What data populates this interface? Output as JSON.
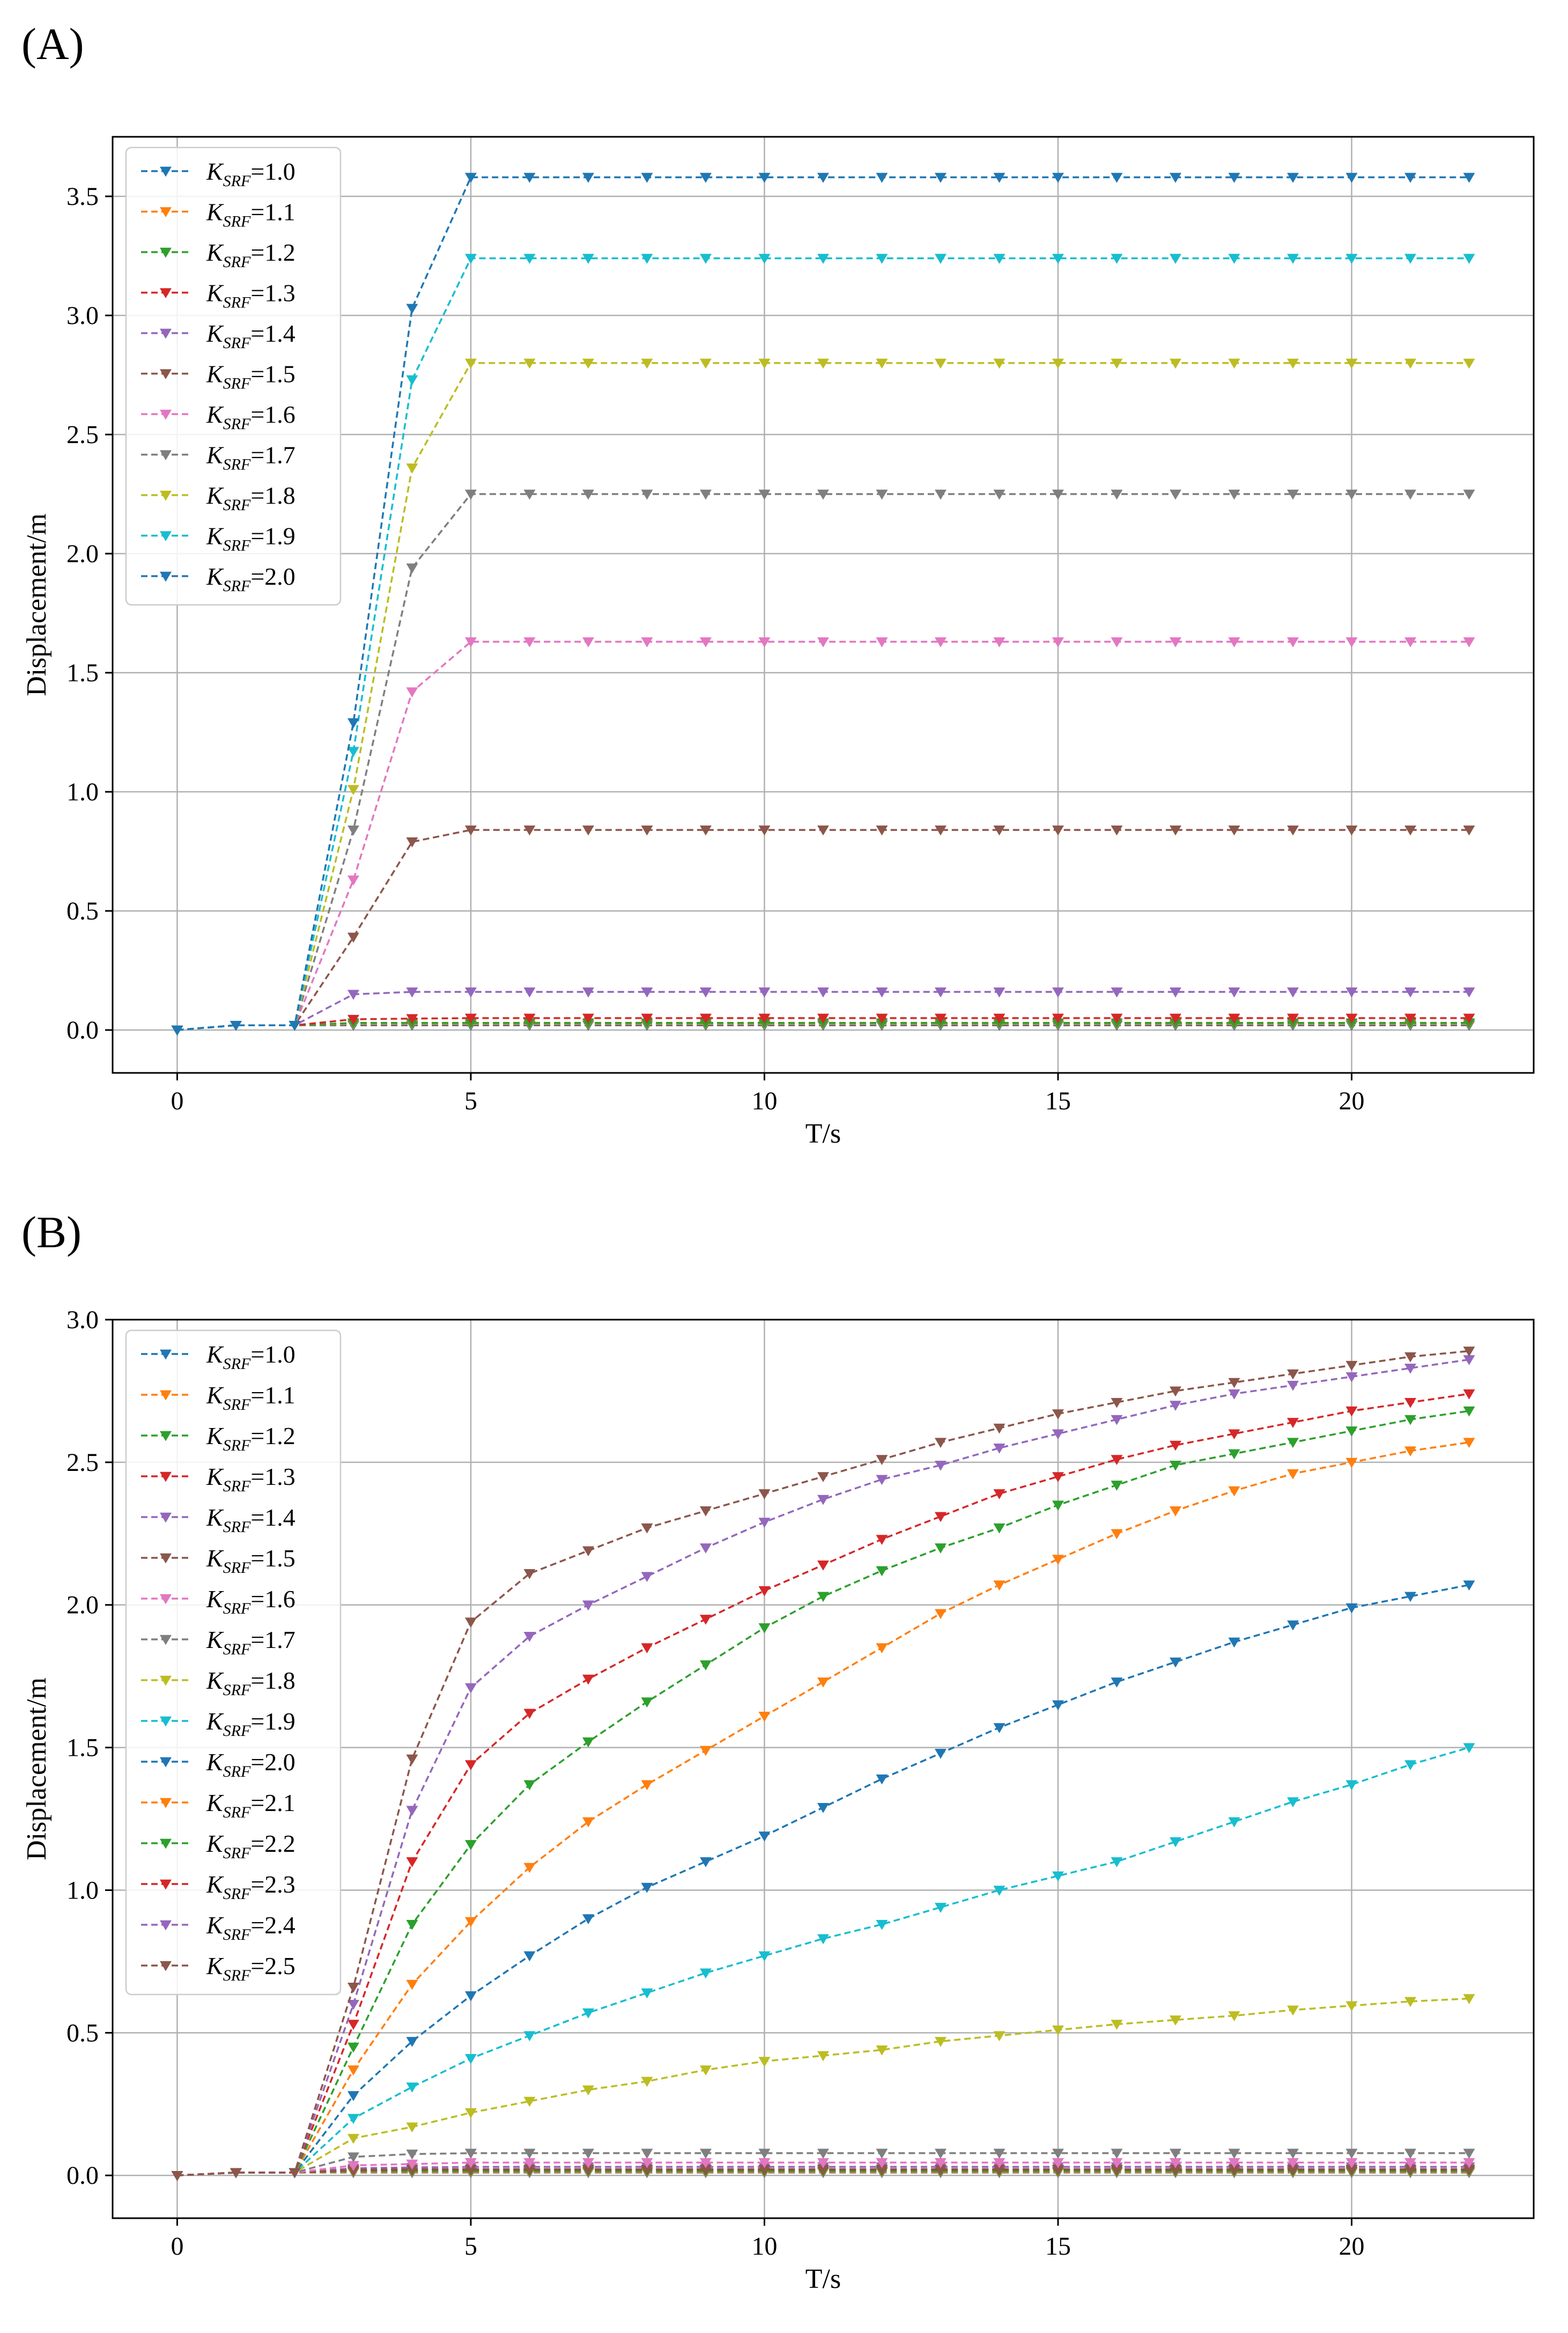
{
  "figure": {
    "markers": {
      "glyph": "triangle-down"
    },
    "colors": {
      "1.0": "#1f77b4",
      "1.1": "#ff7f0e",
      "1.2": "#2ca02c",
      "1.3": "#d62728",
      "1.4": "#9467bd",
      "1.5": "#8c564b",
      "1.6": "#e377c2",
      "1.7": "#7f7f7f",
      "1.8": "#bcbd22",
      "1.9": "#17becf",
      "2.0": "#1f77b4",
      "2.1": "#ff7f0e",
      "2.2": "#2ca02c",
      "2.3": "#d62728",
      "2.4": "#9467bd",
      "2.5": "#8c564b"
    }
  },
  "chart_data": [
    {
      "panel_label": "(A)",
      "type": "line",
      "line_style": "dashed",
      "xlabel": "T/s",
      "ylabel": "Displacement/m",
      "xlim": [
        -1.1,
        23.1
      ],
      "ylim": [
        -0.18,
        3.75
      ],
      "xticks": [
        "0",
        "5",
        "10",
        "15",
        "20"
      ],
      "xtick_values": [
        0,
        5,
        10,
        15,
        20
      ],
      "yticks": [
        "0.0",
        "0.5",
        "1.0",
        "1.5",
        "2.0",
        "2.5",
        "3.0",
        "3.5"
      ],
      "ytick_values": [
        0,
        0.5,
        1.0,
        1.5,
        2.0,
        2.5,
        3.0,
        3.5
      ],
      "grid": true,
      "legend_position": "top-left",
      "legend_prefix": "K",
      "legend_sub": "SRF",
      "x": [
        0,
        1,
        2,
        3,
        4,
        5,
        6,
        7,
        8,
        9,
        10,
        11,
        12,
        13,
        14,
        15,
        16,
        17,
        18,
        19,
        20,
        21,
        22
      ],
      "series": [
        {
          "name": "=1.0",
          "key": "1.0",
          "values": [
            0,
            0.02,
            0.02,
            0.02,
            0.02,
            0.02,
            0.02,
            0.02,
            0.02,
            0.02,
            0.02,
            0.02,
            0.02,
            0.02,
            0.02,
            0.02,
            0.02,
            0.02,
            0.02,
            0.02,
            0.02,
            0.02,
            0.02
          ]
        },
        {
          "name": "=1.1",
          "key": "1.1",
          "values": [
            0,
            0.02,
            0.02,
            0.025,
            0.025,
            0.025,
            0.025,
            0.025,
            0.025,
            0.025,
            0.025,
            0.025,
            0.025,
            0.025,
            0.025,
            0.025,
            0.025,
            0.025,
            0.025,
            0.025,
            0.025,
            0.025,
            0.025
          ]
        },
        {
          "name": "=1.2",
          "key": "1.2",
          "values": [
            0,
            0.02,
            0.02,
            0.03,
            0.03,
            0.03,
            0.03,
            0.03,
            0.03,
            0.03,
            0.03,
            0.03,
            0.03,
            0.03,
            0.03,
            0.03,
            0.03,
            0.03,
            0.03,
            0.03,
            0.03,
            0.03,
            0.03
          ]
        },
        {
          "name": "=1.3",
          "key": "1.3",
          "values": [
            0,
            0.02,
            0.02,
            0.045,
            0.048,
            0.05,
            0.05,
            0.05,
            0.05,
            0.05,
            0.05,
            0.05,
            0.05,
            0.05,
            0.05,
            0.05,
            0.05,
            0.05,
            0.05,
            0.05,
            0.05,
            0.05,
            0.05
          ]
        },
        {
          "name": "=1.4",
          "key": "1.4",
          "values": [
            0,
            0.02,
            0.02,
            0.15,
            0.16,
            0.16,
            0.16,
            0.16,
            0.16,
            0.16,
            0.16,
            0.16,
            0.16,
            0.16,
            0.16,
            0.16,
            0.16,
            0.16,
            0.16,
            0.16,
            0.16,
            0.16,
            0.16
          ]
        },
        {
          "name": "=1.5",
          "key": "1.5",
          "values": [
            0,
            0.02,
            0.02,
            0.39,
            0.79,
            0.84,
            0.84,
            0.84,
            0.84,
            0.84,
            0.84,
            0.84,
            0.84,
            0.84,
            0.84,
            0.84,
            0.84,
            0.84,
            0.84,
            0.84,
            0.84,
            0.84,
            0.84
          ]
        },
        {
          "name": "=1.6",
          "key": "1.6",
          "values": [
            0,
            0.02,
            0.02,
            0.63,
            1.42,
            1.63,
            1.63,
            1.63,
            1.63,
            1.63,
            1.63,
            1.63,
            1.63,
            1.63,
            1.63,
            1.63,
            1.63,
            1.63,
            1.63,
            1.63,
            1.63,
            1.63,
            1.63
          ]
        },
        {
          "name": "=1.7",
          "key": "1.7",
          "values": [
            0,
            0.02,
            0.02,
            0.84,
            1.94,
            2.25,
            2.25,
            2.25,
            2.25,
            2.25,
            2.25,
            2.25,
            2.25,
            2.25,
            2.25,
            2.25,
            2.25,
            2.25,
            2.25,
            2.25,
            2.25,
            2.25,
            2.25
          ]
        },
        {
          "name": "=1.8",
          "key": "1.8",
          "values": [
            0,
            0.02,
            0.02,
            1.01,
            2.36,
            2.8,
            2.8,
            2.8,
            2.8,
            2.8,
            2.8,
            2.8,
            2.8,
            2.8,
            2.8,
            2.8,
            2.8,
            2.8,
            2.8,
            2.8,
            2.8,
            2.8,
            2.8
          ]
        },
        {
          "name": "=1.9",
          "key": "1.9",
          "values": [
            0,
            0.02,
            0.02,
            1.17,
            2.73,
            3.24,
            3.24,
            3.24,
            3.24,
            3.24,
            3.24,
            3.24,
            3.24,
            3.24,
            3.24,
            3.24,
            3.24,
            3.24,
            3.24,
            3.24,
            3.24,
            3.24,
            3.24
          ]
        },
        {
          "name": "=2.0",
          "key": "2.0",
          "values": [
            0,
            0.02,
            0.02,
            1.29,
            3.03,
            3.58,
            3.58,
            3.58,
            3.58,
            3.58,
            3.58,
            3.58,
            3.58,
            3.58,
            3.58,
            3.58,
            3.58,
            3.58,
            3.58,
            3.58,
            3.58,
            3.58,
            3.58
          ]
        }
      ]
    },
    {
      "panel_label": "(B)",
      "type": "line",
      "line_style": "dashed",
      "xlabel": "T/s",
      "ylabel": "Displacement/m",
      "xlim": [
        -1.1,
        23.1
      ],
      "ylim": [
        -0.15,
        3.0
      ],
      "xticks": [
        "0",
        "5",
        "10",
        "15",
        "20"
      ],
      "xtick_values": [
        0,
        5,
        10,
        15,
        20
      ],
      "yticks": [
        "0.0",
        "0.5",
        "1.0",
        "1.5",
        "2.0",
        "2.5",
        "3.0"
      ],
      "ytick_values": [
        0,
        0.5,
        1.0,
        1.5,
        2.0,
        2.5,
        3.0
      ],
      "grid": true,
      "legend_position": "top-left",
      "legend_prefix": "K",
      "legend_sub": "SRF",
      "x": [
        0,
        1,
        2,
        3,
        4,
        5,
        6,
        7,
        8,
        9,
        10,
        11,
        12,
        13,
        14,
        15,
        16,
        17,
        18,
        19,
        20,
        21,
        22
      ],
      "series": [
        {
          "name": "=1.0",
          "key": "1.0",
          "values": [
            0,
            0.01,
            0.01,
            0.01,
            0.01,
            0.01,
            0.01,
            0.01,
            0.01,
            0.01,
            0.01,
            0.01,
            0.01,
            0.01,
            0.01,
            0.01,
            0.01,
            0.01,
            0.01,
            0.01,
            0.01,
            0.01,
            0.01
          ]
        },
        {
          "name": "=1.1",
          "key": "1.1",
          "values": [
            0,
            0.01,
            0.01,
            0.012,
            0.012,
            0.012,
            0.012,
            0.012,
            0.012,
            0.012,
            0.012,
            0.012,
            0.012,
            0.012,
            0.012,
            0.012,
            0.012,
            0.012,
            0.012,
            0.012,
            0.012,
            0.012,
            0.012
          ]
        },
        {
          "name": "=1.2",
          "key": "1.2",
          "values": [
            0,
            0.01,
            0.01,
            0.015,
            0.015,
            0.015,
            0.015,
            0.015,
            0.015,
            0.015,
            0.015,
            0.015,
            0.015,
            0.015,
            0.015,
            0.015,
            0.015,
            0.015,
            0.015,
            0.015,
            0.015,
            0.015,
            0.015
          ]
        },
        {
          "name": "=1.3",
          "key": "1.3",
          "values": [
            0,
            0.01,
            0.01,
            0.018,
            0.02,
            0.02,
            0.02,
            0.02,
            0.02,
            0.02,
            0.02,
            0.02,
            0.02,
            0.02,
            0.02,
            0.02,
            0.02,
            0.02,
            0.02,
            0.02,
            0.02,
            0.02,
            0.02
          ]
        },
        {
          "name": "=1.4",
          "key": "1.4",
          "values": [
            0,
            0.01,
            0.01,
            0.025,
            0.028,
            0.03,
            0.03,
            0.03,
            0.03,
            0.03,
            0.03,
            0.03,
            0.03,
            0.03,
            0.03,
            0.03,
            0.03,
            0.03,
            0.03,
            0.03,
            0.03,
            0.03,
            0.03
          ]
        },
        {
          "name": "=1.5",
          "key": "1.5",
          "values": [
            0,
            0.01,
            0.01,
            0.02,
            0.022,
            0.022,
            0.022,
            0.022,
            0.022,
            0.022,
            0.022,
            0.022,
            0.022,
            0.022,
            0.022,
            0.022,
            0.022,
            0.022,
            0.022,
            0.022,
            0.022,
            0.022,
            0.022
          ]
        },
        {
          "name": "=1.6",
          "key": "1.6",
          "values": [
            0,
            0.01,
            0.01,
            0.035,
            0.04,
            0.045,
            0.045,
            0.045,
            0.045,
            0.045,
            0.045,
            0.045,
            0.045,
            0.045,
            0.045,
            0.045,
            0.045,
            0.045,
            0.045,
            0.045,
            0.045,
            0.045,
            0.045
          ]
        },
        {
          "name": "=1.7",
          "key": "1.7",
          "values": [
            0,
            0.01,
            0.01,
            0.065,
            0.075,
            0.078,
            0.078,
            0.078,
            0.078,
            0.078,
            0.078,
            0.078,
            0.078,
            0.078,
            0.078,
            0.078,
            0.078,
            0.078,
            0.078,
            0.078,
            0.078,
            0.078,
            0.078
          ]
        },
        {
          "name": "=1.8",
          "key": "1.8",
          "values": [
            0,
            0.01,
            0.01,
            0.13,
            0.17,
            0.22,
            0.26,
            0.3,
            0.33,
            0.37,
            0.4,
            0.42,
            0.44,
            0.47,
            0.49,
            0.51,
            0.53,
            0.545,
            0.56,
            0.58,
            0.595,
            0.61,
            0.62
          ]
        },
        {
          "name": "=1.9",
          "key": "1.9",
          "values": [
            0,
            0.01,
            0.01,
            0.2,
            0.31,
            0.41,
            0.49,
            0.57,
            0.64,
            0.71,
            0.77,
            0.83,
            0.88,
            0.94,
            1.0,
            1.05,
            1.1,
            1.17,
            1.24,
            1.31,
            1.37,
            1.44,
            1.5
          ]
        },
        {
          "name": "=2.0",
          "key": "2.0",
          "values": [
            0,
            0.01,
            0.01,
            0.28,
            0.47,
            0.63,
            0.77,
            0.9,
            1.01,
            1.1,
            1.19,
            1.29,
            1.39,
            1.48,
            1.57,
            1.65,
            1.73,
            1.8,
            1.87,
            1.93,
            1.99,
            2.03,
            2.07
          ]
        },
        {
          "name": "=2.1",
          "key": "2.1",
          "values": [
            0,
            0.01,
            0.01,
            0.37,
            0.67,
            0.89,
            1.08,
            1.24,
            1.37,
            1.49,
            1.61,
            1.73,
            1.85,
            1.97,
            2.07,
            2.16,
            2.25,
            2.33,
            2.4,
            2.46,
            2.5,
            2.54,
            2.57
          ]
        },
        {
          "name": "=2.2",
          "key": "2.2",
          "values": [
            0,
            0.01,
            0.01,
            0.45,
            0.88,
            1.16,
            1.37,
            1.52,
            1.66,
            1.79,
            1.92,
            2.03,
            2.12,
            2.2,
            2.27,
            2.35,
            2.42,
            2.49,
            2.53,
            2.57,
            2.61,
            2.65,
            2.68
          ]
        },
        {
          "name": "=2.3",
          "key": "2.3",
          "values": [
            0,
            0.01,
            0.01,
            0.53,
            1.1,
            1.44,
            1.62,
            1.74,
            1.85,
            1.95,
            2.05,
            2.14,
            2.23,
            2.31,
            2.39,
            2.45,
            2.51,
            2.56,
            2.6,
            2.64,
            2.68,
            2.71,
            2.74
          ]
        },
        {
          "name": "=2.4",
          "key": "2.4",
          "values": [
            0,
            0.01,
            0.01,
            0.6,
            1.28,
            1.71,
            1.89,
            2.0,
            2.1,
            2.2,
            2.29,
            2.37,
            2.44,
            2.49,
            2.55,
            2.6,
            2.65,
            2.7,
            2.74,
            2.77,
            2.8,
            2.83,
            2.86
          ]
        },
        {
          "name": "=2.5",
          "key": "2.5",
          "values": [
            0,
            0.01,
            0.01,
            0.66,
            1.46,
            1.94,
            2.11,
            2.19,
            2.27,
            2.33,
            2.39,
            2.45,
            2.51,
            2.57,
            2.62,
            2.67,
            2.71,
            2.75,
            2.78,
            2.81,
            2.84,
            2.87,
            2.89
          ]
        }
      ]
    }
  ]
}
